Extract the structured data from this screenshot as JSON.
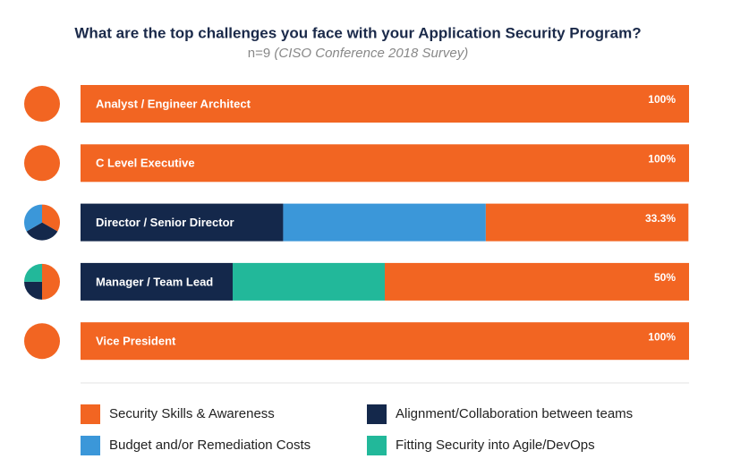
{
  "chart_data": {
    "type": "bar",
    "orientation": "horizontal",
    "stacked": true,
    "title": "What are the top challenges you face with your Application Security Program?",
    "subtitle": "n=9",
    "source": "(CISO Conference 2018 Survey)",
    "categories": [
      "Analyst / Engineer Architect",
      "C Level Executive",
      "Director / Senior Director",
      "Manager / Team Lead",
      "Vice President"
    ],
    "xlim": [
      0,
      100
    ],
    "series": [
      {
        "name": "Security Skills & Awareness",
        "color": "#f26522",
        "values": [
          100,
          100,
          33.3,
          50,
          100
        ],
        "value_labels": [
          "100%",
          "100%",
          "33.3%",
          "50%",
          "100%"
        ]
      },
      {
        "name": "Alignment/Collaboration between teams",
        "color": "#14284b",
        "values": [
          0,
          0,
          33.3,
          25,
          0
        ]
      },
      {
        "name": "Budget and/or Remediation Costs",
        "color": "#3b97d9",
        "values": [
          0,
          0,
          33.3,
          0,
          0
        ]
      },
      {
        "name": "Fitting Security into Agile/DevOps",
        "color": "#22b89a",
        "values": [
          0,
          0,
          0,
          25,
          0
        ]
      }
    ]
  }
}
